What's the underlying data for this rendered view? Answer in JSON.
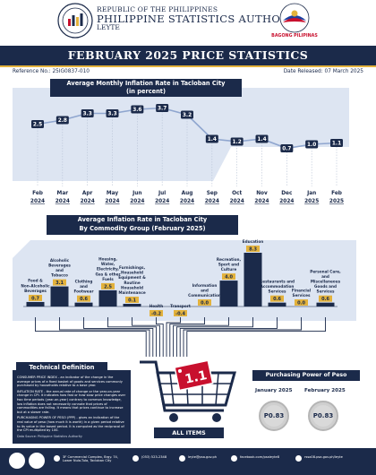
{
  "header": {
    "line1": "REPUBLIC OF THE PHILIPPINES",
    "line2": "PHILIPPINE STATISTICS AUTHORITY",
    "line3": "LEYTE",
    "partner_logo_text": "BAGONG PILIPINAS"
  },
  "title": "FEBRUARY 2025 PRICE STATISTICS",
  "reference": "Reference No.: 25IG0837-010",
  "date_released": "Date Released: 07 March 2025",
  "chart_data": [
    {
      "type": "line",
      "title": "Average Monthly Inflation Rate in Tacloban City (in percent)",
      "title_line1": "Average Monthly Inflation Rate in Tacloban City",
      "title_line2": "(in percent)",
      "xlabel": "",
      "ylabel": "",
      "x": [
        {
          "month": "Feb",
          "year": "2024"
        },
        {
          "month": "Mar",
          "year": "2024"
        },
        {
          "month": "Apr",
          "year": "2024"
        },
        {
          "month": "May",
          "year": "2024"
        },
        {
          "month": "Jun",
          "year": "2024"
        },
        {
          "month": "Jul",
          "year": "2024"
        },
        {
          "month": "Aug",
          "year": "2024"
        },
        {
          "month": "Sep",
          "year": "2024"
        },
        {
          "month": "Oct",
          "year": "2024"
        },
        {
          "month": "Nov",
          "year": "2024"
        },
        {
          "month": "Dec",
          "year": "2024"
        },
        {
          "month": "Jan",
          "year": "2025"
        },
        {
          "month": "Feb",
          "year": "2025"
        }
      ],
      "values": [
        2.5,
        2.8,
        3.3,
        3.3,
        3.6,
        3.7,
        3.2,
        1.4,
        1.2,
        1.4,
        0.7,
        1.0,
        1.1
      ],
      "labels": [
        "2.5",
        "2.8",
        "3.3",
        "3.3",
        "3.6",
        "3.7",
        "3.2",
        "1.4",
        "1.2",
        "1.4",
        "0.7",
        "1.0",
        "1.1"
      ],
      "ylim": [
        0,
        4
      ],
      "grid": false,
      "colors": {
        "line": "#8fa6cf",
        "marker": "#1b2a4a",
        "label_bg": "#1b2a4a"
      }
    },
    {
      "type": "bar",
      "title": "Average Inflation Rate in Tacloban City By Commodity Group (February 2025)",
      "title_line1": "Average Inflation Rate in Tacloban City",
      "title_line2": "By Commodity Group (February 2025)",
      "xlabel": "",
      "ylabel": "",
      "categories": [
        [
          "Food &",
          "Non-Alcoholic",
          "Beverages"
        ],
        [
          "Alcoholic",
          "Beverages",
          "and",
          "Tobacco"
        ],
        [
          "Clothing",
          "and",
          "Footwear"
        ],
        [
          "Housing,",
          "Water,",
          "Electricity,",
          "Gas & other",
          "Fuels"
        ],
        [
          "Furnishings,",
          "Household",
          "Equipment &",
          "Routine",
          "Household",
          "Maintenance"
        ],
        [
          "Health"
        ],
        [
          "Transport"
        ],
        [
          "Information",
          "and",
          "Communication"
        ],
        [
          "Recreation,",
          "Sport and",
          "Culture"
        ],
        [
          "Education"
        ],
        [
          "Restaurants and",
          "Accommodation",
          "Services"
        ],
        [
          "Financial",
          "Services"
        ],
        [
          "Personal Care,",
          "and",
          "Miscellaneous",
          "Goods and",
          "Services"
        ]
      ],
      "values": [
        0.7,
        3.1,
        0.6,
        2.5,
        0.1,
        -0.2,
        -0.4,
        0.0,
        4.0,
        8.3,
        0.6,
        0.0,
        0.6
      ],
      "labels": [
        "0.7",
        "3.1",
        "0.6",
        "2.5",
        "0.1",
        "-0.2",
        "-0.4",
        "0.0",
        "4.0",
        "8.3",
        "0.6",
        "0.0",
        "0.6"
      ],
      "ylim": [
        -0.4,
        8.3
      ],
      "grid": false,
      "colors": {
        "bar": "#1b2a4a",
        "label_bg": "#e3b23c"
      }
    }
  ],
  "technical": {
    "header": "Technical Definition",
    "p1": "CONSUMER PRICE INDEX - an indicator of the change in the average prices of a fixed basket of goods and services commonly purchased by households relative to a base year.",
    "p2": "INFLATION RATE - the annual rate of change or the year-on-year change in CPI. It indicates how fast or how slow price changes over two time periods (year-on-year) contrary to common knowledge, low inflation does not necessarily connote that prices of commodities are falling. It means that prices continue to increase but at a slower rate.",
    "p3": "PURCHASING POWER OF PESO (PPP) - gives an indication of the real value of peso (how much it is worth) in a given period relative to its value in the based period. It is computed as the reciprocal of the CPI multiplied by 100.",
    "source": "Data Source: Philippine Statistics Authority"
  },
  "cart": {
    "value": "1.1",
    "label": "ALL ITEMS"
  },
  "ppp": {
    "header": "Purchasing Power of Peso",
    "jan_label": "January 2025",
    "jan_value": "P0.83",
    "feb_label": "February 2025",
    "feb_value": "P0.83"
  },
  "footer": {
    "address": "3F Commercial Complex, Brgy. 74, Lower Nula-Tula, Tacloban City",
    "phone": "(053) 523-2348",
    "email": "leyte@psa.gov.ph",
    "facebook": "facebook.com/psaleyte8",
    "web": "rsso08.psa.gov.ph/leyte"
  }
}
